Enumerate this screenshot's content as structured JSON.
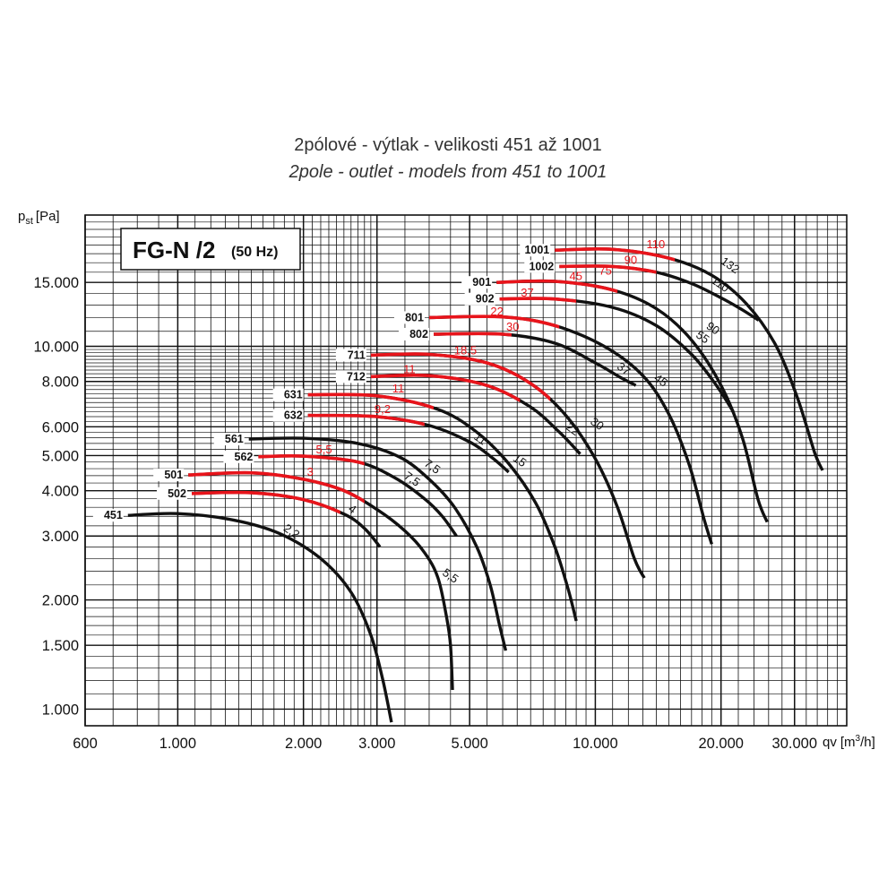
{
  "title_cz": "2pólové - výtlak - velikosti 451 až 1001",
  "title_en": "2pole - outlet - models from 451 to 1001",
  "box": {
    "name": "FG-N /2",
    "freq": "(50 Hz)"
  },
  "colors": {
    "curve": "#111111",
    "motor_segment": "#e8141b",
    "grid": "#111111"
  },
  "chart_data": {
    "type": "line",
    "x_scale": "log",
    "y_scale": "log",
    "xlim": [
      600,
      40000
    ],
    "ylim": [
      900,
      23000
    ],
    "xlabel": "qv",
    "xlabel_unit_a": "[m",
    "xlabel_unit_sup": "3",
    "xlabel_unit_b": "/h]",
    "ylabel": "p",
    "ylabel_sub": "st",
    "ylabel_unit": "[Pa]",
    "x_ticks": [
      {
        "v": 600,
        "label": "600"
      },
      {
        "v": 1000,
        "label": "1.000"
      },
      {
        "v": 2000,
        "label": "2.000"
      },
      {
        "v": 3000,
        "label": "3.000"
      },
      {
        "v": 5000,
        "label": "5.000"
      },
      {
        "v": 10000,
        "label": "10.000"
      },
      {
        "v": 20000,
        "label": "20.000"
      },
      {
        "v": 30000,
        "label": "30.000"
      }
    ],
    "y_ticks": [
      {
        "v": 1000,
        "label": "1.000"
      },
      {
        "v": 1500,
        "label": "1.500"
      },
      {
        "v": 2000,
        "label": "2.000"
      },
      {
        "v": 3000,
        "label": "3.000"
      },
      {
        "v": 4000,
        "label": "4.000"
      },
      {
        "v": 5000,
        "label": "5.000"
      },
      {
        "v": 6000,
        "label": "6.000"
      },
      {
        "v": 8000,
        "label": "8.000"
      },
      {
        "v": 10000,
        "label": "10.000"
      },
      {
        "v": 15000,
        "label": "15.000"
      }
    ],
    "grid": true,
    "series": [
      {
        "name": "451",
        "points": [
          [
            760,
            3420
          ],
          [
            1000,
            3460
          ],
          [
            1360,
            3320
          ],
          [
            1750,
            3050
          ],
          [
            2200,
            2600
          ],
          [
            2600,
            2100
          ],
          [
            2900,
            1600
          ],
          [
            3100,
            1200
          ],
          [
            3250,
            920
          ]
        ],
        "red": [],
        "powers": [
          {
            "label": "2,2",
            "q": 1750,
            "p": 3050,
            "color": "black"
          }
        ]
      },
      {
        "name": "501",
        "points": [
          [
            1060,
            4420
          ],
          [
            1500,
            4480
          ],
          [
            2000,
            4300
          ],
          [
            2500,
            4000
          ],
          [
            3000,
            3550
          ],
          [
            3500,
            3100
          ],
          [
            3900,
            2700
          ],
          [
            4200,
            2300
          ],
          [
            4400,
            1800
          ],
          [
            4500,
            1500
          ],
          [
            4550,
            1130
          ]
        ],
        "red": [
          [
            1060,
            2800
          ]
        ],
        "powers": [
          {
            "label": "3",
            "q": 2000,
            "p": 4300,
            "color": "red"
          },
          {
            "label": "5,5",
            "q": 4200,
            "p": 2300,
            "color": "black"
          }
        ]
      },
      {
        "name": "502",
        "points": [
          [
            1080,
            3930
          ],
          [
            1500,
            3950
          ],
          [
            2000,
            3780
          ],
          [
            2500,
            3450
          ],
          [
            2800,
            3150
          ],
          [
            3050,
            2800
          ]
        ],
        "red": [
          [
            1080,
            2450
          ]
        ],
        "powers": [
          {
            "label": "4",
            "q": 2500,
            "p": 3450,
            "color": "black"
          }
        ]
      },
      {
        "name": "561",
        "points": [
          [
            1480,
            5550
          ],
          [
            2000,
            5580
          ],
          [
            2700,
            5400
          ],
          [
            3400,
            4950
          ],
          [
            4000,
            4300
          ],
          [
            4600,
            3600
          ],
          [
            5200,
            2800
          ],
          [
            5600,
            2200
          ],
          [
            5900,
            1700
          ],
          [
            6100,
            1450
          ]
        ],
        "red": [],
        "powers": [
          {
            "label": "7,5",
            "q": 3800,
            "p": 4600,
            "color": "black"
          }
        ]
      },
      {
        "name": "562",
        "points": [
          [
            1560,
            4960
          ],
          [
            2000,
            4980
          ],
          [
            2700,
            4800
          ],
          [
            3300,
            4350
          ],
          [
            3900,
            3800
          ],
          [
            4300,
            3400
          ],
          [
            4650,
            3000
          ]
        ],
        "red": [
          [
            1560,
            2800
          ]
        ],
        "powers": [
          {
            "label": "5,5",
            "q": 2100,
            "p": 4950,
            "color": "red"
          },
          {
            "label": "7,5",
            "q": 3400,
            "p": 4250,
            "color": "black"
          }
        ]
      },
      {
        "name": "631",
        "points": [
          [
            2050,
            7350
          ],
          [
            3000,
            7300
          ],
          [
            4200,
            6700
          ],
          [
            5200,
            5800
          ],
          [
            6200,
            4750
          ],
          [
            7200,
            3700
          ],
          [
            8000,
            2800
          ],
          [
            8600,
            2150
          ],
          [
            9000,
            1750
          ]
        ],
        "red": [
          [
            2050,
            4100
          ]
        ],
        "powers": [
          {
            "label": "11",
            "q": 3200,
            "p": 7300,
            "color": "red"
          },
          {
            "label": "15",
            "q": 6200,
            "p": 4750,
            "color": "black"
          }
        ]
      },
      {
        "name": "632",
        "points": [
          [
            2050,
            6450
          ],
          [
            3000,
            6400
          ],
          [
            4000,
            6050
          ],
          [
            5000,
            5450
          ],
          [
            5700,
            4900
          ],
          [
            6200,
            4500
          ]
        ],
        "red": [
          [
            2050,
            3900
          ]
        ],
        "powers": [
          {
            "label": "9,2",
            "q": 2900,
            "p": 6400,
            "color": "red"
          },
          {
            "label": "11",
            "q": 5000,
            "p": 5450,
            "color": "black"
          }
        ]
      },
      {
        "name": "711",
        "points": [
          [
            2900,
            9450
          ],
          [
            4000,
            9500
          ],
          [
            5500,
            9000
          ],
          [
            7000,
            7900
          ],
          [
            8500,
            6450
          ],
          [
            10000,
            4900
          ],
          [
            11300,
            3600
          ],
          [
            12400,
            2600
          ],
          [
            13100,
            2300
          ]
        ],
        "red": [
          [
            2900,
            7800
          ]
        ],
        "powers": [
          {
            "label": "18,5",
            "q": 4500,
            "p": 9300,
            "color": "red"
          },
          {
            "label": "30",
            "q": 9500,
            "p": 6000,
            "color": "black"
          }
        ]
      },
      {
        "name": "712",
        "points": [
          [
            2900,
            8250
          ],
          [
            4000,
            8300
          ],
          [
            5500,
            7800
          ],
          [
            7000,
            6800
          ],
          [
            8200,
            5800
          ],
          [
            9200,
            5050
          ]
        ],
        "red": [
          [
            2900,
            6600
          ]
        ],
        "powers": [
          {
            "label": "11",
            "q": 3400,
            "p": 8250,
            "color": "red"
          },
          {
            "label": "22",
            "q": 8300,
            "p": 5800,
            "color": "black"
          }
        ]
      },
      {
        "name": "801",
        "points": [
          [
            4000,
            12000
          ],
          [
            6000,
            12050
          ],
          [
            8000,
            11400
          ],
          [
            10500,
            10000
          ],
          [
            13000,
            8300
          ],
          [
            15000,
            6500
          ],
          [
            16800,
            4700
          ],
          [
            18200,
            3350
          ],
          [
            19000,
            2850
          ]
        ],
        "red": [
          [
            4000,
            8200
          ]
        ],
        "powers": [
          {
            "label": "22",
            "q": 5500,
            "p": 11900,
            "color": "red"
          },
          {
            "label": "45",
            "q": 13500,
            "p": 7900,
            "color": "black"
          }
        ]
      },
      {
        "name": "802",
        "points": [
          [
            4100,
            10800
          ],
          [
            6000,
            10800
          ],
          [
            8000,
            10200
          ],
          [
            10000,
            9000
          ],
          [
            11500,
            8200
          ],
          [
            12500,
            7800
          ]
        ],
        "red": [
          [
            4100,
            6300
          ]
        ],
        "powers": [
          {
            "label": "30",
            "q": 6000,
            "p": 10800,
            "color": "red"
          },
          {
            "label": "37",
            "q": 11000,
            "p": 8500,
            "color": "black"
          }
        ]
      },
      {
        "name": "901",
        "points": [
          [
            5800,
            15000
          ],
          [
            8000,
            15100
          ],
          [
            11000,
            14300
          ],
          [
            14000,
            12700
          ],
          [
            17000,
            10400
          ],
          [
            20000,
            7800
          ],
          [
            22500,
            5600
          ],
          [
            24500,
            3800
          ],
          [
            25800,
            3280
          ]
        ],
        "red": [
          [
            5800,
            11300
          ]
        ],
        "powers": [
          {
            "label": "45",
            "q": 8500,
            "p": 14900,
            "color": "red"
          },
          {
            "label": "90",
            "q": 18000,
            "p": 11000,
            "color": "black"
          }
        ]
      },
      {
        "name": "902",
        "points": [
          [
            5900,
            13500
          ],
          [
            8000,
            13500
          ],
          [
            11000,
            12800
          ],
          [
            14000,
            11400
          ],
          [
            17000,
            9500
          ],
          [
            19500,
            7800
          ],
          [
            21400,
            6600
          ]
        ],
        "red": [
          [
            5900,
            9000
          ]
        ],
        "powers": [
          {
            "label": "37",
            "q": 6500,
            "p": 13400,
            "color": "red"
          },
          {
            "label": "55",
            "q": 17000,
            "p": 10400,
            "color": "black"
          }
        ]
      },
      {
        "name": "1001",
        "points": [
          [
            8000,
            18400
          ],
          [
            11000,
            18500
          ],
          [
            15000,
            17500
          ],
          [
            19000,
            15700
          ],
          [
            23000,
            13100
          ],
          [
            27000,
            10100
          ],
          [
            30500,
            7200
          ],
          [
            33500,
            5100
          ],
          [
            35000,
            4550
          ]
        ],
        "red": [
          [
            8000,
            15500
          ]
        ],
        "powers": [
          {
            "label": "110",
            "q": 13000,
            "p": 18200,
            "color": "red"
          },
          {
            "label": "132",
            "q": 19500,
            "p": 16600,
            "color": "black"
          }
        ]
      },
      {
        "name": "1002",
        "points": [
          [
            8200,
            16600
          ],
          [
            11000,
            16600
          ],
          [
            14000,
            16000
          ],
          [
            17000,
            14900
          ],
          [
            20000,
            13600
          ],
          [
            22500,
            12600
          ],
          [
            24600,
            11800
          ]
        ],
        "red": [
          [
            8200,
            14000
          ]
        ],
        "powers": [
          {
            "label": "90",
            "q": 11500,
            "p": 16500,
            "color": "red"
          },
          {
            "label": "75",
            "q": 10000,
            "p": 15400,
            "color": "red"
          },
          {
            "label": "110",
            "q": 18500,
            "p": 14700,
            "color": "black"
          }
        ]
      }
    ]
  }
}
